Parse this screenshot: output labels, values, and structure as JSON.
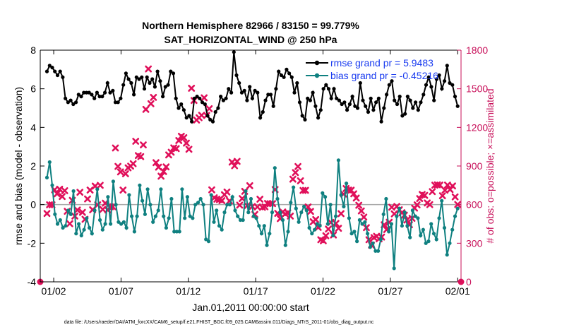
{
  "chart_data": {
    "type": "line",
    "title": "Northern Hemisphere 82966 / 83150 = 99.779%",
    "subtitle": "SAT_HORIZONTAL_WIND @ 250 hPa",
    "xlabel": "Jan.01,2011 00:00:00 start",
    "ylabel_left": "rmse and bias (model - observation)",
    "ylabel_right": "# of obs: o=possible; ×=assimilated",
    "footer": "data file: /Users/raeder/DAI/ATM_forcXX/CAM6_setup/f.e21.FHIST_BGC.f09_025.CAM6assim.011/Diags_NTrS_2011-01/obs_diag_output.nc",
    "x_ticks": [
      "01/02",
      "01/07",
      "01/12",
      "01/17",
      "01/22",
      "01/27",
      "02/01"
    ],
    "x_tick_days": [
      1,
      6,
      11,
      16,
      21,
      26,
      31
    ],
    "xlim_days": [
      0,
      31.25
    ],
    "ylim_left": [
      -4,
      8
    ],
    "yticks_left": [
      -4,
      -2,
      0,
      2,
      4,
      6,
      8
    ],
    "ylim_right": [
      0,
      1800
    ],
    "yticks_right": [
      0,
      300,
      600,
      900,
      1200,
      1500,
      1800
    ],
    "zero_line": true,
    "legend_position": "top-right",
    "colors": {
      "rmse": "#000000",
      "bias": "#0f8080",
      "obs": "#e0105a",
      "right_axis": "#c8105a",
      "legend_text": "#1a3cf0",
      "zero": "#aaaaaa"
    },
    "series": [
      {
        "name": "rmse grand pr = 5.9483",
        "axis": "left",
        "values": [
          6.9,
          7.2,
          7.1,
          6.9,
          6.7,
          6.9,
          6.6,
          5.5,
          5.3,
          5.4,
          5.2,
          5.3,
          5.7,
          5.6,
          5.8,
          5.8,
          5.8,
          5.7,
          5.5,
          5.8,
          5.6,
          5.6,
          5.8,
          6.3,
          5.8,
          5.9,
          5.3,
          5.3,
          5.5,
          6.2,
          6.8,
          6.5,
          6.3,
          5.7,
          6.6,
          6.5,
          6.6,
          6.0,
          6.6,
          6.3,
          6.5,
          6.1,
          6.9,
          6.4,
          5.6,
          6.1,
          6.2,
          6.9,
          6.8,
          5.5,
          5.0,
          5.2,
          4.9,
          4.5,
          4.6,
          4.3,
          5.5,
          5.6,
          5.5,
          5.3,
          5.2,
          4.6,
          4.4,
          4.3,
          4.8,
          5.0,
          5.6,
          5.4,
          5.5,
          6.0,
          5.8,
          7.9,
          6.7,
          6.3,
          5.8,
          5.9,
          5.4,
          6.1,
          5.5,
          5.9,
          5.8,
          4.5,
          4.8,
          5.4,
          5.7,
          5.7,
          5.1,
          6.0,
          6.9,
          6.7,
          6.6,
          7.0,
          6.8,
          6.6,
          5.8,
          6.3,
          5.3,
          4.6,
          4.4,
          5.5,
          5.4,
          5.8,
          5.1,
          4.5,
          4.9,
          6.0,
          6.2,
          6.0,
          5.5,
          6.0,
          5.5,
          5.4,
          5.2,
          5.3,
          4.9,
          5.2,
          5.6,
          5.1,
          5.0,
          6.3,
          5.4,
          5.1,
          4.8,
          5.5,
          4.9,
          5.3,
          5.5,
          4.3,
          5.0,
          5.7,
          6.2,
          6.4,
          5.4,
          5.2,
          5.6,
          4.6,
          4.7,
          5.6,
          5.4,
          5.0,
          5.3,
          4.9,
          5.3,
          5.7,
          6.2,
          6.6,
          6.1,
          5.4,
          6.5,
          6.7,
          6.0,
          6.4,
          7.2,
          6.3,
          6.2,
          5.6,
          5.1
        ]
      },
      {
        "name": "bias grand pr = -0.45216",
        "axis": "left",
        "values": [
          1.4,
          2.2,
          1.0,
          -0.5,
          -1.0,
          -0.8,
          -1.2,
          -1.1,
          -0.3,
          -0.5,
          0.7,
          -1.5,
          -1.0,
          -1.6,
          -1.3,
          -0.7,
          -1.2,
          -1.5,
          -0.3,
          0.8,
          -0.8,
          -1.3,
          -1.0,
          0.4,
          -1.0,
          1.2,
          0.0,
          -0.9,
          -1.0,
          -0.9,
          -1.2,
          0.5,
          -0.6,
          -1.4,
          -0.6,
          1.0,
          0.2,
          -0.5,
          0.8,
          0.0,
          -0.9,
          -0.6,
          -0.3,
          0.8,
          -0.6,
          -1.2,
          -0.7,
          0.3,
          -1.4,
          -1.4,
          -1.4,
          0.8,
          -0.7,
          0.4,
          -0.6,
          -0.7,
          0.0,
          0.1,
          0.3,
          0.0,
          -1.8,
          -1.9,
          0.5,
          -0.9,
          -0.3,
          -1.1,
          -1.3,
          -0.4,
          0.0,
          0.0,
          0.4,
          -0.3,
          -0.6,
          -0.8,
          -0.8,
          0.7,
          -0.4,
          0.3,
          -0.6,
          -0.7,
          -1.1,
          -1.5,
          -1.1,
          -2.1,
          -1.5,
          -0.4,
          1.9,
          0.3,
          -0.4,
          -0.8,
          -2.1,
          -1.4,
          0.1,
          0.9,
          -0.2,
          -0.9,
          -0.4,
          -0.1,
          -0.3,
          -1.2,
          -1.5,
          -1.3,
          -1.0,
          -1.1,
          0.6,
          0.4,
          -1.0,
          0.0,
          -1.6,
          -0.6,
          2.3,
          0.5,
          -0.1,
          1.1,
          -0.7,
          -1.5,
          -1.4,
          -1.9,
          -0.8,
          -1.0,
          -0.9,
          -1.5,
          -2.2,
          -2.0,
          -2.4,
          -2.4,
          -1.8,
          -0.5,
          0.3,
          -1.4,
          -1.0,
          -3.3,
          -0.6,
          -0.2,
          -1.1,
          -0.4,
          -1.1,
          -1.7,
          -0.3,
          -0.6,
          -0.7,
          -1.6,
          -1.3,
          -2.0,
          -1.9,
          -1.0,
          -1.5,
          -1.8,
          -0.7,
          0.2,
          -1.2,
          -2.6,
          -2.0,
          -1.3,
          -0.6,
          -0.2
        ]
      },
      {
        "name": "# of obs assimilated",
        "axis": "right",
        "marker": "x",
        "values": [
          531,
          599,
          598,
          715,
          684,
          720,
          663,
          708,
          548,
          452,
          633,
          511,
          558,
          696,
          540,
          486,
          644,
          713,
          560,
          744,
          598,
          750,
          563,
          611,
          558,
          583,
          583,
          1040,
          897,
          854,
          713,
          840,
          886,
          899,
          918,
          1092,
          981,
          973,
          1064,
          1340,
          1654,
          1384,
          1433,
          926,
          891,
          821,
          857,
          893,
          986,
          1007,
          1041,
          1035,
          1098,
          1131,
          1120,
          1078,
          1030,
          1504,
          1409,
          1257,
          1275,
          1294,
          1430,
          1293,
          1345,
          715,
          653,
          642,
          639,
          631,
          677,
          698,
          629,
          930,
          902,
          936,
          596,
          647,
          703,
          592,
          747,
          585,
          524,
          582,
          642,
          579,
          583,
          609,
          607,
          608,
          717,
          532,
          491,
          543,
          528,
          537,
          511,
          798,
          849,
          896,
          785,
          710,
          711,
          582,
          547,
          467,
          484,
          423,
          327,
          319,
          358,
          410,
          462,
          364,
          454,
          416,
          530,
          682,
          725,
          713,
          712,
          684,
          651,
          595,
          551,
          503,
          421,
          327,
          285,
          344,
          354,
          334,
          348,
          443,
          406,
          463,
          580,
          528,
          586,
          560,
          537,
          518,
          480,
          444,
          493,
          573,
          598,
          647,
          679,
          672,
          613,
          600,
          701,
          751,
          754,
          752,
          669,
          712,
          752,
          717,
          745,
          660,
          601
        ]
      }
    ]
  }
}
